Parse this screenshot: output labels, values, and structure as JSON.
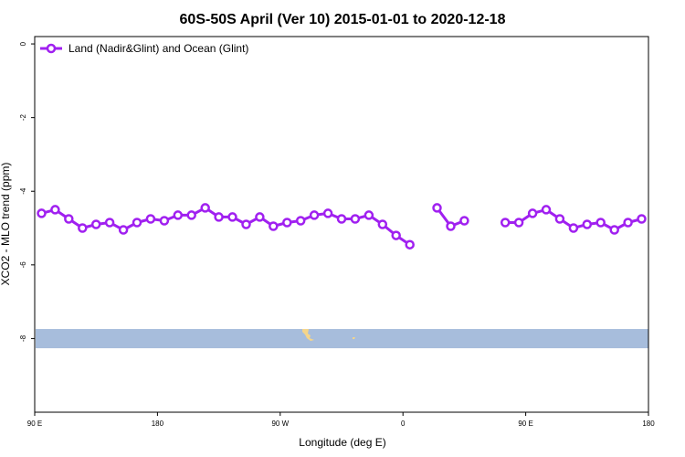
{
  "chart_data": {
    "type": "line",
    "title": "60S-50S April (Ver 10)   2015-01-01 to 2020-12-18",
    "xlabel": "Longitude (deg E)",
    "ylabel": "XCO2 - MLO trend (ppm)",
    "xlim": [
      90,
      450
    ],
    "ylim": [
      -10,
      0.2
    ],
    "x_ticks": [
      {
        "value": 90,
        "label": "90 E"
      },
      {
        "value": 180,
        "label": "180"
      },
      {
        "value": 270,
        "label": "90 W"
      },
      {
        "value": 360,
        "label": "0"
      },
      {
        "value": 450,
        "label": "90 E"
      },
      {
        "value": 540,
        "label": "180"
      }
    ],
    "y_ticks": [
      {
        "value": 0,
        "label": "0"
      },
      {
        "value": -2,
        "label": "-2"
      },
      {
        "value": -4,
        "label": "-4"
      },
      {
        "value": -6,
        "label": "-6"
      },
      {
        "value": -8,
        "label": "-8"
      }
    ],
    "x_range": [
      90,
      540
    ],
    "y_range": [
      -10,
      0.2
    ],
    "grid": false,
    "legend_position": "top-left",
    "colors": {
      "series": "#a020f0",
      "ocean": "#a7bddc",
      "land": "#f5d58a"
    },
    "series": [
      {
        "name": "Land (Nadir&Glint) and Ocean (Glint)",
        "segments": [
          [
            {
              "x": 95,
              "y": -4.6
            },
            {
              "x": 105,
              "y": -4.5
            },
            {
              "x": 115,
              "y": -4.75
            },
            {
              "x": 125,
              "y": -5.0
            },
            {
              "x": 135,
              "y": -4.9
            },
            {
              "x": 145,
              "y": -4.85
            },
            {
              "x": 155,
              "y": -5.05
            },
            {
              "x": 165,
              "y": -4.85
            },
            {
              "x": 175,
              "y": -4.75
            },
            {
              "x": 185,
              "y": -4.8
            },
            {
              "x": 195,
              "y": -4.65
            },
            {
              "x": 205,
              "y": -4.65
            },
            {
              "x": 215,
              "y": -4.45
            },
            {
              "x": 225,
              "y": -4.7
            },
            {
              "x": 235,
              "y": -4.7
            },
            {
              "x": 245,
              "y": -4.9
            },
            {
              "x": 255,
              "y": -4.7
            },
            {
              "x": 265,
              "y": -4.95
            },
            {
              "x": 275,
              "y": -4.85
            },
            {
              "x": 285,
              "y": -4.8
            },
            {
              "x": 295,
              "y": -4.65
            },
            {
              "x": 305,
              "y": -4.6
            },
            {
              "x": 315,
              "y": -4.75
            },
            {
              "x": 325,
              "y": -4.75
            },
            {
              "x": 335,
              "y": -4.65
            },
            {
              "x": 345,
              "y": -4.9
            },
            {
              "x": 355,
              "y": -5.2
            },
            {
              "x": 365,
              "y": -5.45
            }
          ],
          [
            {
              "x": 385,
              "y": -4.45
            },
            {
              "x": 395,
              "y": -4.95
            },
            {
              "x": 405,
              "y": -4.8
            }
          ],
          [
            {
              "x": 435,
              "y": -4.85
            },
            {
              "x": 445,
              "y": -4.85
            },
            {
              "x": 455,
              "y": -4.6
            },
            {
              "x": 465,
              "y": -4.5
            },
            {
              "x": 475,
              "y": -4.75
            },
            {
              "x": 485,
              "y": -5.0
            },
            {
              "x": 495,
              "y": -4.9
            },
            {
              "x": 505,
              "y": -4.85
            },
            {
              "x": 515,
              "y": -5.05
            },
            {
              "x": 525,
              "y": -4.85
            },
            {
              "x": 535,
              "y": -4.75
            }
          ]
        ]
      }
    ]
  }
}
